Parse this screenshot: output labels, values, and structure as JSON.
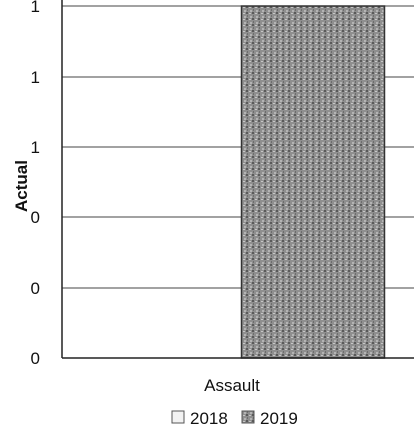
{
  "chart_data": {
    "type": "bar",
    "ylabel": "Actual",
    "categories": [
      "Assault"
    ],
    "y_tick_labels": [
      "0",
      "0",
      "0",
      "1",
      "1",
      "1"
    ],
    "ylim": [
      0,
      1
    ],
    "grid": true,
    "series": [
      {
        "name": "2018",
        "values": [
          0
        ],
        "color": "#f2f2f2"
      },
      {
        "name": "2019",
        "values": [
          1
        ],
        "color": "#8a8a8a"
      }
    ],
    "legend_position": "bottom"
  }
}
